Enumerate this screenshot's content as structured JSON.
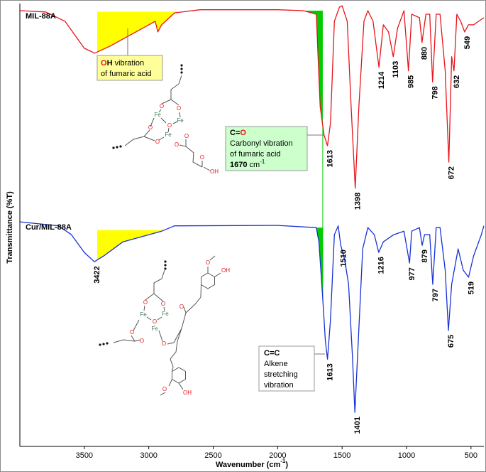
{
  "chart_data": {
    "type": "line",
    "x_label": [
      "Wavenumber (cm",
      "-1",
      ")"
    ],
    "y_label": "Transmittance (%T)",
    "xlim": [
      4000,
      400
    ],
    "ylim": [
      0,
      100
    ],
    "xticks": [
      3500,
      3000,
      2500,
      2000,
      1500,
      1000,
      500
    ],
    "series": [
      {
        "name": "MIL-88A",
        "color": "#e8141b",
        "x": [
          4000,
          3800,
          3650,
          3500,
          3420,
          3300,
          3100,
          3000,
          2950,
          2930,
          2900,
          2800,
          2600,
          2000,
          1800,
          1700,
          1670,
          1640,
          1613,
          1590,
          1560,
          1520,
          1500,
          1460,
          1430,
          1398,
          1370,
          1330,
          1300,
          1260,
          1214,
          1180,
          1140,
          1103,
          1070,
          1020,
          985,
          960,
          900,
          880,
          850,
          820,
          798,
          770,
          740,
          700,
          672,
          650,
          632,
          610,
          580,
          549,
          520,
          480,
          400
        ],
        "values": [
          98.4,
          98.1,
          96.0,
          89.9,
          88.8,
          90.4,
          93.6,
          95.2,
          96.0,
          93.6,
          95.2,
          97.9,
          98.6,
          98.6,
          98.4,
          97.6,
          76.7,
          70.3,
          67.9,
          73.0,
          96.0,
          99.2,
          99.5,
          96.0,
          76.7,
          58.3,
          76.7,
          96.0,
          98.4,
          96.0,
          85.6,
          95.2,
          93.6,
          88.0,
          94.4,
          98.4,
          84.8,
          97.6,
          96.8,
          91.2,
          97.6,
          97.6,
          82.3,
          97.6,
          97.6,
          84.8,
          64.2,
          88.0,
          84.8,
          97.6,
          96.0,
          93.6,
          95.2,
          95.2,
          96.8
        ],
        "peaks": [
          1613,
          1398,
          1214,
          1103,
          985,
          880,
          798,
          672,
          632,
          549
        ]
      },
      {
        "name": "Cur/MIL-88A",
        "color": "#1732d6",
        "x": [
          4000,
          3700,
          3600,
          3500,
          3422,
          3350,
          3200,
          3000,
          2900,
          2800,
          2000,
          1700,
          1680,
          1650,
          1630,
          1613,
          1590,
          1560,
          1530,
          1510,
          1480,
          1450,
          1420,
          1401,
          1380,
          1340,
          1300,
          1250,
          1216,
          1180,
          1100,
          1020,
          977,
          960,
          900,
          879,
          860,
          820,
          797,
          770,
          740,
          700,
          675,
          650,
          600,
          560,
          519,
          480,
          420,
          400
        ],
        "values": [
          50.7,
          49.8,
          47.8,
          43.8,
          41.7,
          43.0,
          46.2,
          47.8,
          48.6,
          49.8,
          49.9,
          49.4,
          46.2,
          33.4,
          23.8,
          19.7,
          28.6,
          47.8,
          49.8,
          45.4,
          42.2,
          36.6,
          20.5,
          7.7,
          20.5,
          44.6,
          49.4,
          47.8,
          43.8,
          46.2,
          47.8,
          48.6,
          41.4,
          48.6,
          49.4,
          45.4,
          47.8,
          47.8,
          36.6,
          49.4,
          49.4,
          39.8,
          26.2,
          36.6,
          44.6,
          39.8,
          38.2,
          43.0,
          47.8,
          49.8
        ],
        "peaks": [
          3422,
          1613,
          1510,
          1401,
          1216,
          977,
          879,
          797,
          675,
          519
        ]
      }
    ],
    "fills": [
      {
        "series": 0,
        "from": 3400,
        "to": 2730,
        "color": "#ffff00"
      },
      {
        "series": 0,
        "from": 1800,
        "to": 1650,
        "color": "#00cc00"
      },
      {
        "series": 1,
        "from": 3400,
        "to": 2880,
        "color": "#ffff00"
      },
      {
        "series": 1,
        "from": 1700,
        "to": 1650,
        "color": "#00cc00"
      }
    ],
    "guide_x": 1650,
    "annotations": [
      {
        "lines": [
          [
            "O",
            "H",
            " vibration"
          ],
          [
            "of fumaric acid"
          ]
        ]
      },
      {
        "lines": [
          [
            "C=",
            "O"
          ],
          [
            "Carbonyl vibration"
          ],
          [
            "of fumaric acid"
          ],
          [
            "1670",
            " cm",
            "-1"
          ]
        ]
      },
      {
        "lines": [
          [
            "C=C"
          ],
          [
            "Alkene"
          ],
          [
            "stretching"
          ],
          [
            "vibration"
          ]
        ]
      }
    ],
    "structures": [
      {
        "atoms": [
          "Fe",
          "Fe",
          "Fe",
          "O",
          "O",
          "O",
          "O",
          "O",
          "O",
          "O",
          "O",
          "OH"
        ]
      },
      {
        "atoms": [
          "Fe",
          "Fe",
          "Fe",
          "O",
          "O",
          "O",
          "O",
          "O",
          "O",
          "O",
          "O",
          "OH",
          "O",
          "OH"
        ]
      }
    ]
  }
}
